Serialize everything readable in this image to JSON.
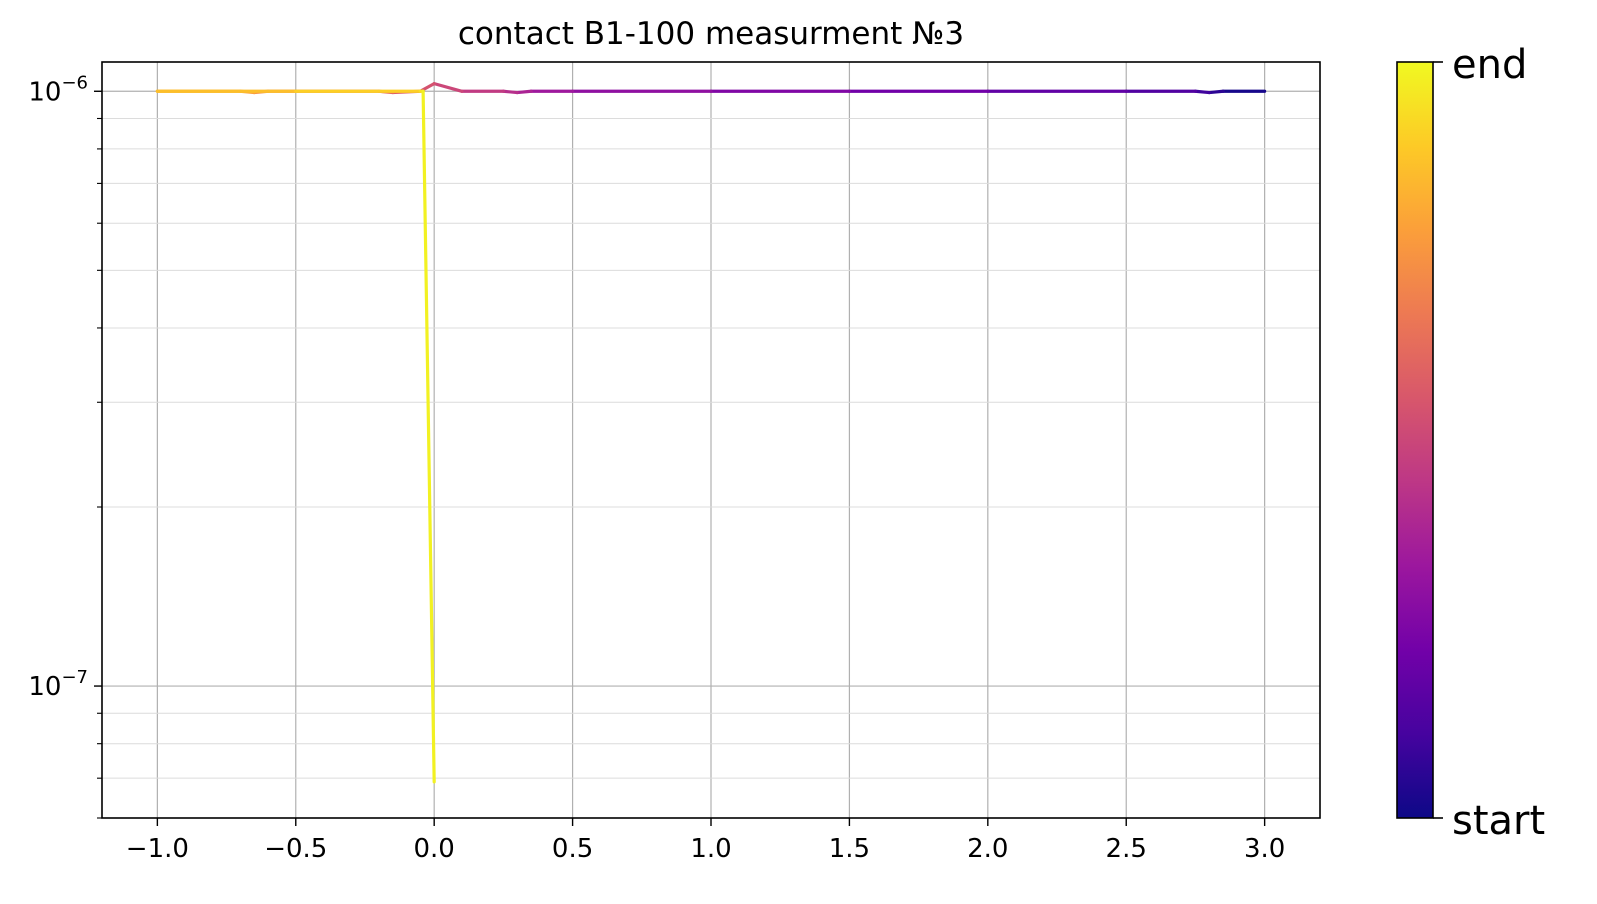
{
  "chart_data": {
    "type": "line",
    "title": "contact B1-100 measurment №3",
    "xlabel": "",
    "ylabel": "",
    "x_scale": "linear",
    "y_scale": "log",
    "xlim": [
      -1.2,
      3.2
    ],
    "ylim": [
      6e-08,
      1.12e-06
    ],
    "x_ticks": [
      -1.0,
      -0.5,
      0.0,
      0.5,
      1.0,
      1.5,
      2.0,
      2.5,
      3.0
    ],
    "x_tick_labels": [
      "−1.0",
      "−0.5",
      "0.0",
      "0.5",
      "1.0",
      "1.5",
      "2.0",
      "2.5",
      "3.0"
    ],
    "y_major_ticks": [
      {
        "value": 1e-06,
        "base": "10",
        "exp": "−6"
      },
      {
        "value": 1e-07,
        "base": "10",
        "exp": "−7"
      }
    ],
    "grid": true,
    "colormap": "plasma",
    "colormap_stops": [
      "#0d0887",
      "#46039f",
      "#7201a8",
      "#9c179e",
      "#bd3786",
      "#d8576b",
      "#ed7953",
      "#fb9f3a",
      "#fdca26",
      "#f0f921"
    ],
    "colorbar": {
      "label_top": "end",
      "label_bottom": "start"
    },
    "series": [
      {
        "x": [
          3.0,
          2.85,
          2.8,
          2.75,
          2.5,
          2.0,
          1.5,
          1.0,
          0.5,
          0.35,
          0.3,
          0.25,
          0.1,
          0.0,
          -0.05,
          -0.15,
          -0.2,
          -0.5,
          -0.6,
          -0.65,
          -0.7,
          -1.0,
          -0.5,
          -0.05,
          -0.04,
          0.0
        ],
        "y": [
          1e-06,
          1e-06,
          9.95e-07,
          1e-06,
          1e-06,
          1e-06,
          1e-06,
          1e-06,
          1e-06,
          1e-06,
          9.95e-07,
          1e-06,
          1e-06,
          1.03e-06,
          1e-06,
          9.95e-07,
          1e-06,
          1e-06,
          1e-06,
          9.95e-07,
          1e-06,
          1e-06,
          1e-06,
          1e-06,
          1e-06,
          6.9e-08
        ]
      }
    ]
  }
}
